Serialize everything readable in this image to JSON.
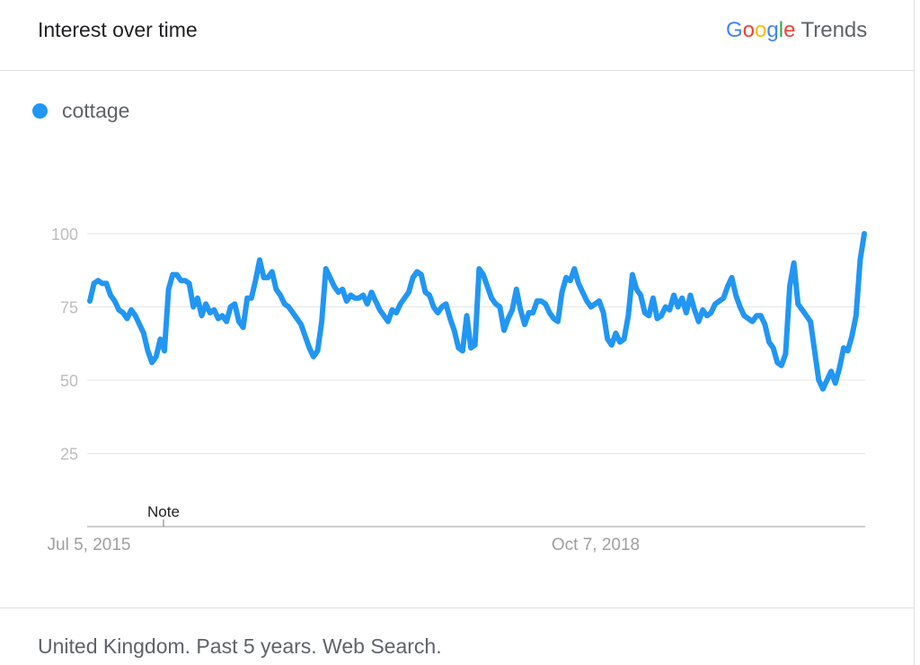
{
  "header": {
    "title": "Interest over time",
    "brand_parts": [
      "G",
      "o",
      "o",
      "g",
      "l",
      "e"
    ],
    "brand_suffix": "Trends"
  },
  "chart_data": {
    "type": "line",
    "title": "Interest over time",
    "xlabel": "",
    "ylabel": "",
    "ylim": [
      0,
      100
    ],
    "yticks": [
      25,
      50,
      75,
      100
    ],
    "xticks": [
      "Jul 5, 2015",
      "Oct 7, 2018"
    ],
    "annotations": [
      {
        "text": "Note",
        "x": "2015-12-27"
      }
    ],
    "grid": true,
    "legend": "top-left",
    "series": [
      {
        "name": "cottage",
        "color": "#2196F3",
        "start": "2015-07-05",
        "interval": "weekly",
        "values": [
          77,
          83,
          84,
          83,
          83,
          79,
          77,
          74,
          73,
          71,
          74,
          72,
          69,
          66,
          60,
          56,
          58,
          64,
          60,
          81,
          86,
          86,
          84,
          84,
          83,
          75,
          78,
          72,
          76,
          73,
          74,
          71,
          72,
          70,
          75,
          76,
          70,
          68,
          78,
          78,
          84,
          91,
          85,
          85,
          87,
          81,
          79,
          76,
          75,
          73,
          71,
          69,
          65,
          61,
          58,
          60,
          70,
          88,
          85,
          82,
          80,
          81,
          77,
          79,
          78,
          78,
          79,
          76,
          80,
          77,
          74,
          72,
          70,
          74,
          73,
          76,
          78,
          80,
          85,
          87,
          86,
          80,
          79,
          75,
          73,
          75,
          76,
          71,
          67,
          61,
          60,
          72,
          61,
          62,
          88,
          86,
          82,
          78,
          76,
          75,
          67,
          71,
          74,
          81,
          74,
          69,
          73,
          73,
          77,
          77,
          76,
          73,
          71,
          70,
          80,
          85,
          84,
          88,
          83,
          80,
          77,
          75,
          76,
          77,
          73,
          64,
          62,
          66,
          63,
          64,
          72,
          86,
          81,
          79,
          73,
          72,
          78,
          71,
          72,
          75,
          74,
          79,
          75,
          78,
          73,
          79,
          74,
          70,
          74,
          72,
          73,
          76,
          77,
          78,
          82,
          85,
          79,
          75,
          72,
          71,
          70,
          72,
          72,
          69,
          63,
          61,
          56,
          55,
          59,
          82,
          90,
          76,
          74,
          72,
          70,
          60,
          50,
          47,
          50,
          53,
          49,
          54,
          61,
          60,
          65,
          72,
          91,
          100
        ]
      }
    ]
  },
  "footer": {
    "text": "United Kingdom. Past 5 years. Web Search."
  }
}
